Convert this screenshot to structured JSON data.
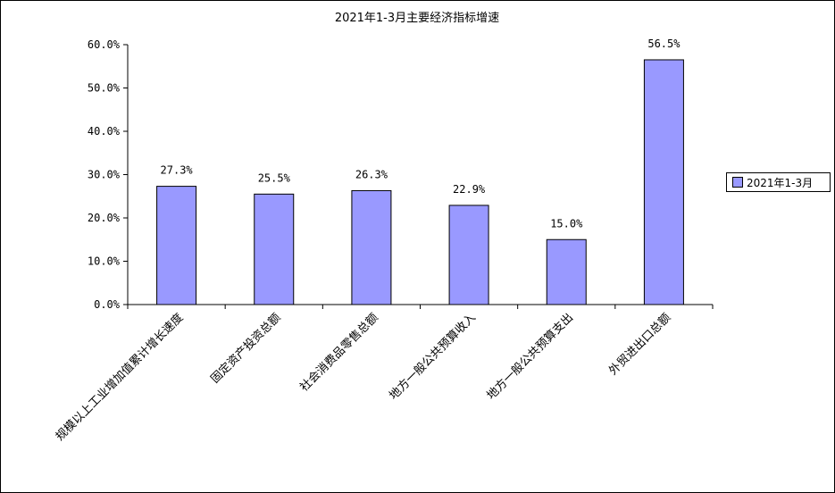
{
  "chart_data": {
    "type": "bar",
    "title": "2021年1-3月主要经济指标增速",
    "categories": [
      "规模以上工业增加值累计增长速度",
      "固定资产投资总额",
      "社会消费品零售总额",
      "地方一般公共预算收入",
      "地方一般公共预算支出",
      "外贸进出口总额"
    ],
    "series": [
      {
        "name": "2021年1-3月",
        "values": [
          27.3,
          25.5,
          26.3,
          22.9,
          15.0,
          56.5
        ],
        "data_labels": [
          "27.3%",
          "25.5%",
          "26.3%",
          "22.9%",
          "15.0%",
          "56.5%"
        ]
      }
    ],
    "ylim": [
      0,
      60
    ],
    "y_ticks": [
      0,
      10,
      20,
      30,
      40,
      50,
      60
    ],
    "y_tick_labels": [
      "0.0%",
      "10.0%",
      "20.0%",
      "30.0%",
      "40.0%",
      "50.0%",
      "60.0%"
    ],
    "xlabel": "",
    "ylabel": "",
    "grid": false,
    "legend_position": "right",
    "colors": {
      "bar_fill": "#9999ff",
      "bar_stroke": "#000000",
      "axis": "#000000"
    }
  }
}
